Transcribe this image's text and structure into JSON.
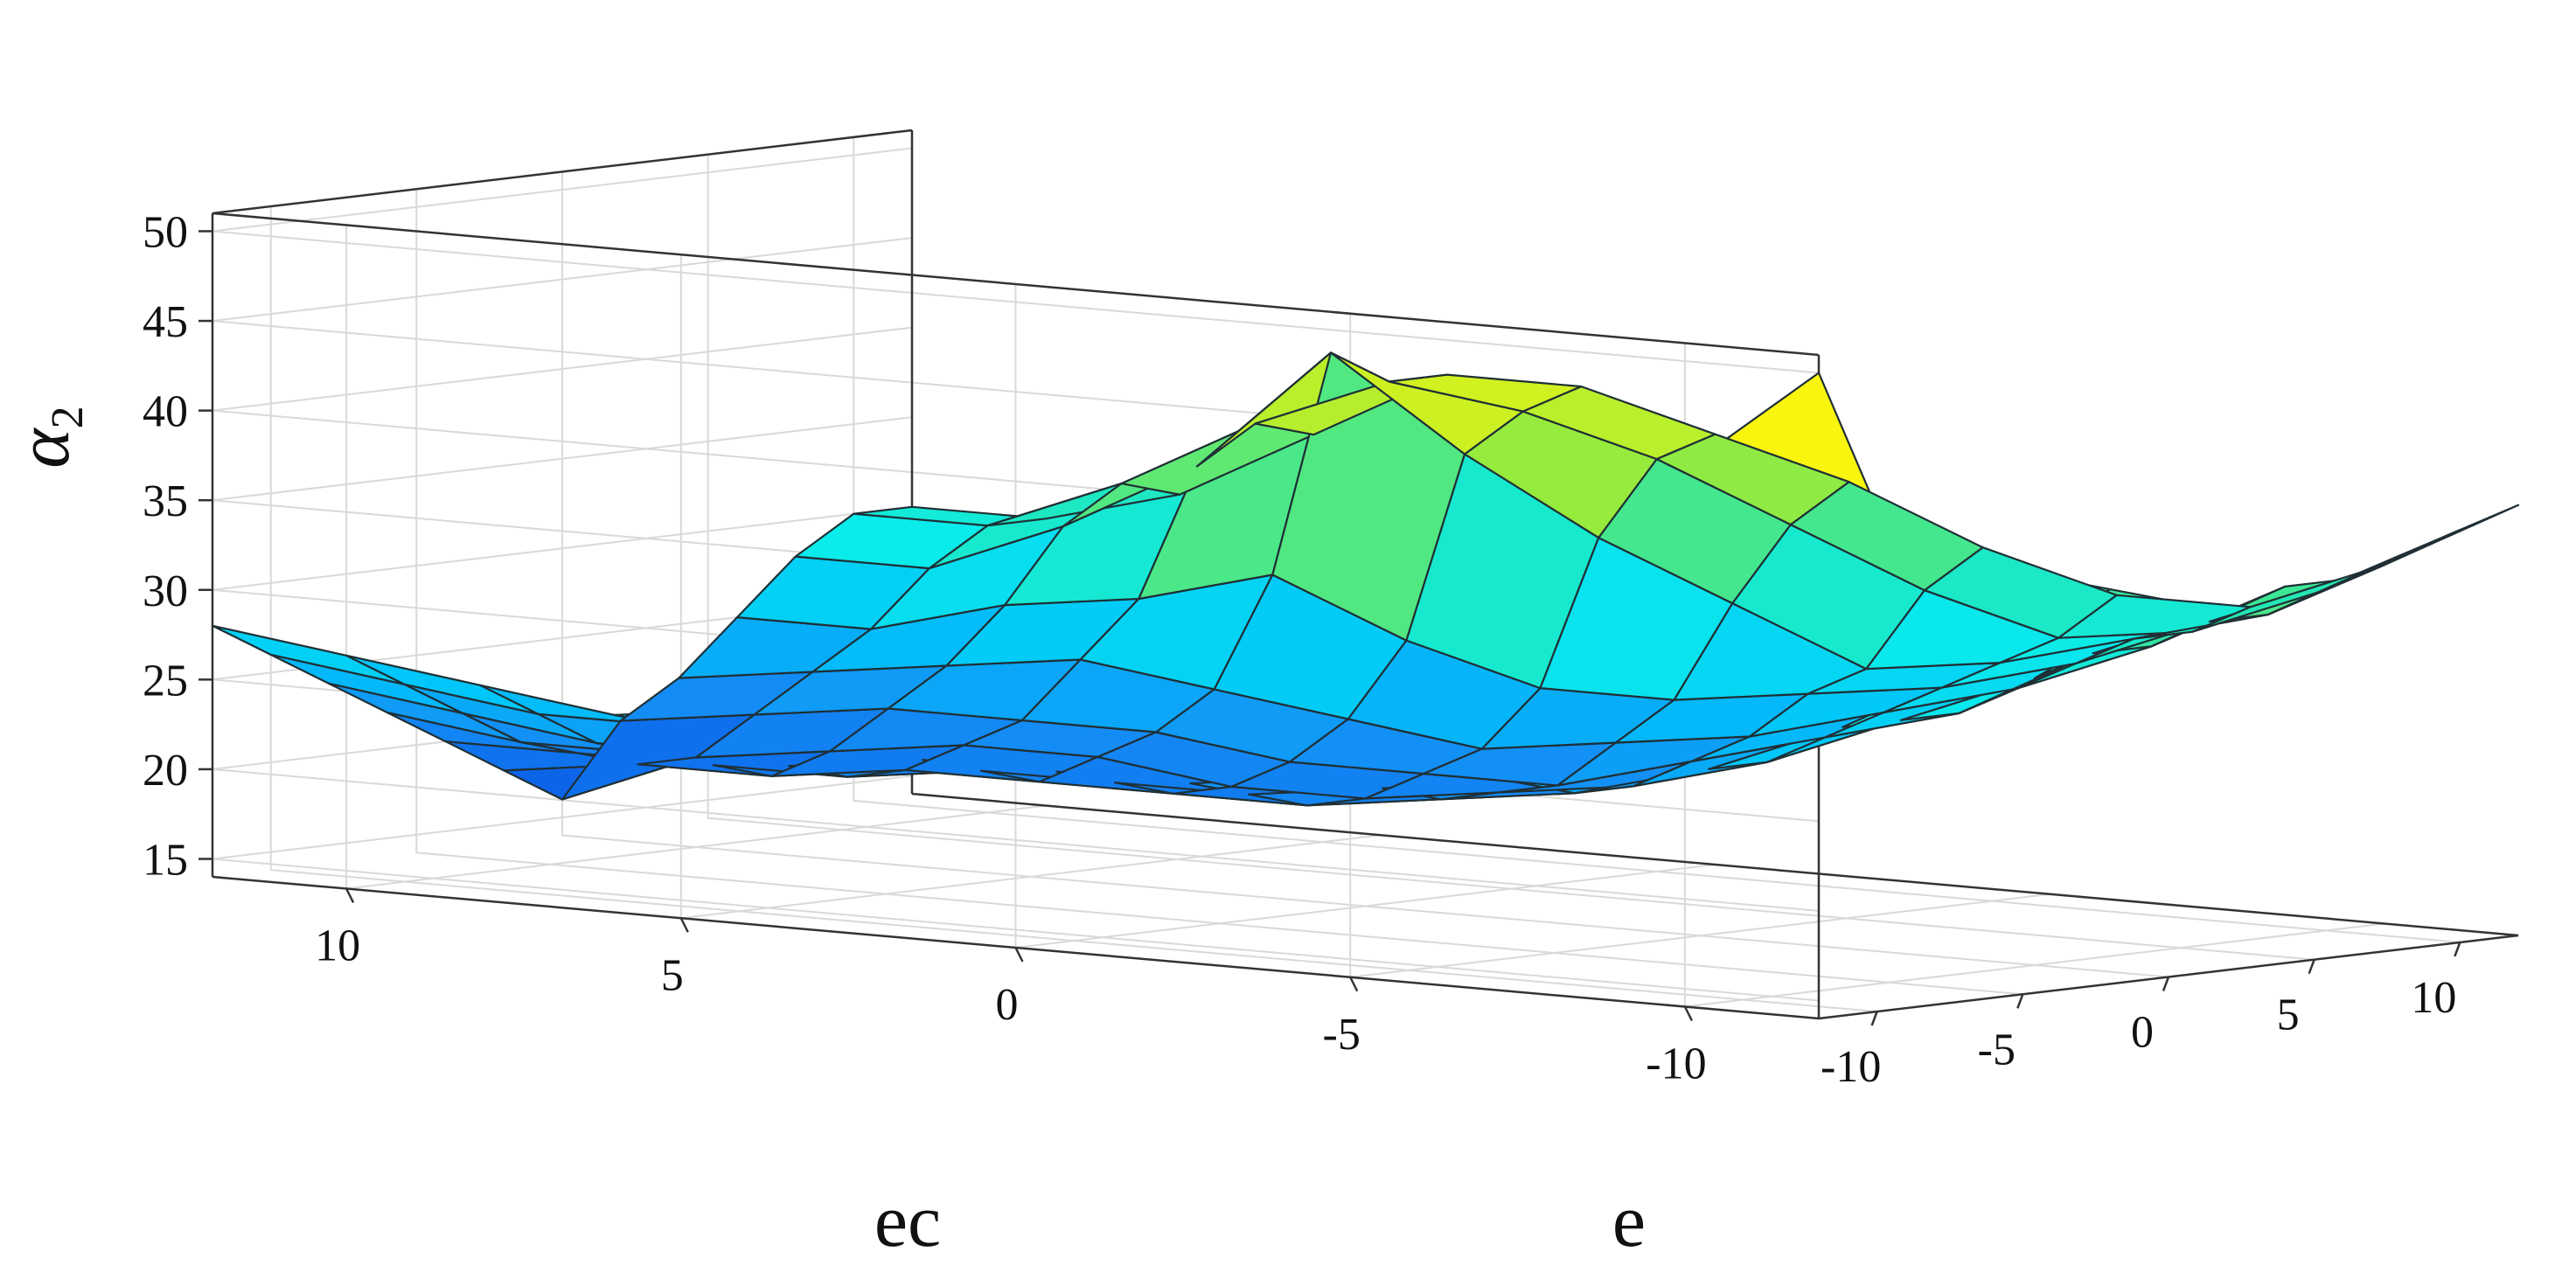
{
  "chart_data": {
    "type": "surface",
    "title": "",
    "xlabel": "e",
    "ylabel": "ec",
    "zlabel": "α",
    "zlabel_subscript": "2",
    "x_ticks": [
      "-10",
      "-5",
      "0",
      "5",
      "10"
    ],
    "y_ticks": [
      "-10",
      "-5",
      "0",
      "5",
      "10"
    ],
    "z_ticks": [
      "15",
      "20",
      "25",
      "30",
      "35",
      "40",
      "45",
      "50"
    ],
    "xlim": [
      -12,
      12
    ],
    "ylim": [
      -12,
      12
    ],
    "zlim": [
      14,
      51
    ],
    "grid": true,
    "colormap": "parula",
    "x": [
      -12,
      -10,
      -8,
      -6,
      -4,
      -2,
      0,
      2,
      4,
      6,
      8,
      10,
      12
    ],
    "y": [
      -12,
      -10,
      -8,
      -6,
      -4,
      -2,
      0,
      2,
      4,
      6,
      8,
      10,
      12
    ],
    "z": [
      [
        50,
        42,
        39,
        38,
        37,
        36,
        35,
        34,
        35,
        35,
        36,
        37,
        38
      ],
      [
        44,
        40,
        36,
        33,
        31,
        31,
        30,
        31,
        31,
        32,
        32,
        33,
        34
      ],
      [
        40,
        36,
        32,
        30,
        28,
        27,
        27,
        27,
        28,
        29,
        30,
        30,
        31
      ],
      [
        36,
        32,
        30,
        27,
        25,
        24,
        24,
        25,
        26,
        27,
        28,
        29,
        31
      ],
      [
        32,
        30,
        27,
        25,
        23,
        22,
        22,
        23,
        24,
        26,
        27,
        31,
        33
      ],
      [
        30,
        27,
        25,
        23,
        22,
        21,
        21,
        21,
        23,
        25,
        30,
        34,
        36
      ],
      [
        28,
        26,
        24,
        22,
        21,
        20,
        20,
        21,
        22,
        25,
        33,
        37,
        38
      ],
      [
        27,
        25,
        23,
        22,
        21,
        20,
        20,
        21,
        23,
        27,
        37,
        39,
        40
      ],
      [
        26,
        24,
        23,
        22,
        21,
        20,
        21,
        22,
        24,
        30,
        42,
        40,
        40
      ],
      [
        25,
        24,
        22,
        21,
        20,
        20,
        21,
        22,
        25,
        28,
        35,
        37,
        36
      ],
      [
        26,
        24,
        22,
        21,
        20,
        19,
        20,
        22,
        24,
        27,
        31,
        33,
        32
      ],
      [
        27,
        25,
        23,
        21,
        20,
        19,
        19,
        21,
        23,
        25,
        28,
        30,
        30
      ],
      [
        28,
        26,
        24,
        22,
        20,
        18,
        16,
        20,
        22,
        25,
        28,
        30,
        30
      ]
    ]
  }
}
